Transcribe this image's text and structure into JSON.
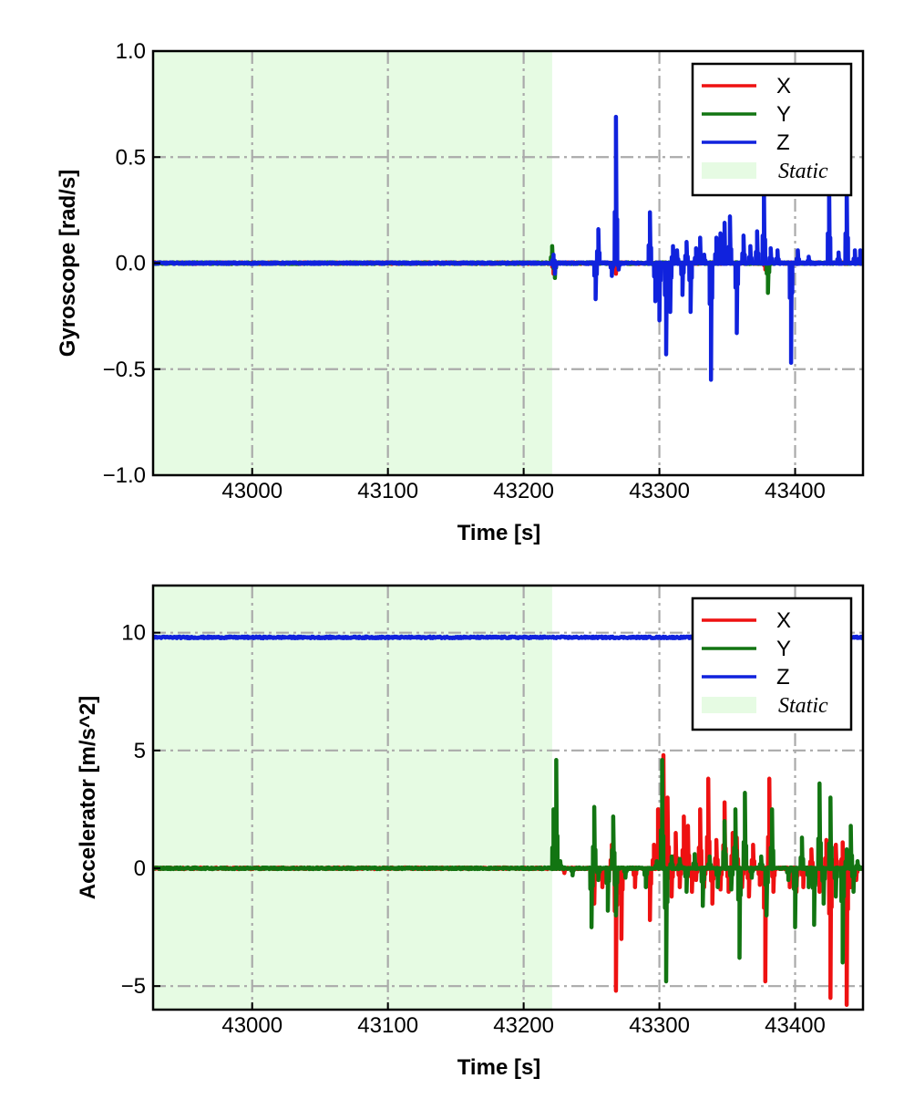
{
  "colors": {
    "x": "#ee1111",
    "y": "#127512",
    "z": "#1022dd",
    "static": "#e6fbe3",
    "grid": "#aaaaaa"
  },
  "chart_data": [
    {
      "type": "line",
      "xlabel": "Time [s]",
      "ylabel": "Gyroscope [rad/s]",
      "xlim": [
        42927,
        43450
      ],
      "ylim": [
        -1.0,
        1.0
      ],
      "xticks": [
        43000,
        43100,
        43200,
        43300,
        43400
      ],
      "xtick_labels": [
        "43000",
        "43100",
        "43200",
        "43300",
        "43400"
      ],
      "yticks": [
        -1.0,
        -0.5,
        0.0,
        0.5,
        1.0
      ],
      "ytick_labels": [
        "−1.0",
        "−0.5",
        "0.0",
        "0.5",
        "1.0"
      ],
      "grid": true,
      "legend": {
        "position": "top-right",
        "labels": [
          "X",
          "Y",
          "Z",
          "Static"
        ]
      },
      "static_region": [
        42927,
        43221
      ],
      "series": [
        {
          "name": "X",
          "color_key": "x",
          "baseline": 0.0,
          "spikes": [
            [
              43221,
              0.05
            ],
            [
              43222,
              -0.05
            ],
            [
              43268,
              -0.05
            ],
            [
              43298,
              -0.05
            ],
            [
              43378,
              -0.03
            ]
          ]
        },
        {
          "name": "Y",
          "color_key": "y",
          "baseline": 0.0,
          "spikes": [
            [
              43221,
              0.08
            ],
            [
              43223,
              -0.07
            ],
            [
              43380,
              -0.14
            ],
            [
              43432,
              0.03
            ]
          ]
        },
        {
          "name": "Z",
          "color_key": "z",
          "baseline": 0.0,
          "spikes": [
            [
              43222,
              0.04
            ],
            [
              43223,
              -0.05
            ],
            [
              43253,
              -0.17
            ],
            [
              43255,
              0.16
            ],
            [
              43265,
              -0.06
            ],
            [
              43268,
              0.69
            ],
            [
              43270,
              -0.03
            ],
            [
              43293,
              0.24
            ],
            [
              43297,
              -0.18
            ],
            [
              43300,
              -0.27
            ],
            [
              43305,
              -0.43
            ],
            [
              43308,
              -0.23
            ],
            [
              43310,
              0.08
            ],
            [
              43313,
              0.06
            ],
            [
              43317,
              -0.15
            ],
            [
              43320,
              0.1
            ],
            [
              43323,
              -0.23
            ],
            [
              43327,
              0.07
            ],
            [
              43330,
              0.12
            ],
            [
              43333,
              0.04
            ],
            [
              43338,
              -0.55
            ],
            [
              43342,
              0.12
            ],
            [
              43345,
              0.14
            ],
            [
              43348,
              0.19
            ],
            [
              43352,
              0.22
            ],
            [
              43357,
              -0.33
            ],
            [
              43362,
              0.13
            ],
            [
              43367,
              0.08
            ],
            [
              43372,
              0.15
            ],
            [
              43377,
              0.37
            ],
            [
              43382,
              0.07
            ],
            [
              43387,
              0.06
            ],
            [
              43397,
              -0.47
            ],
            [
              43402,
              0.06
            ],
            [
              43410,
              0.03
            ],
            [
              43425,
              0.4
            ],
            [
              43432,
              0.05
            ],
            [
              43438,
              0.4
            ],
            [
              43444,
              0.06
            ],
            [
              43448,
              0.06
            ]
          ]
        }
      ]
    },
    {
      "type": "line",
      "xlabel": "Time [s]",
      "ylabel": "Accelerator [m/s^2]",
      "xlim": [
        42927,
        43450
      ],
      "ylim": [
        -6.0,
        12.0
      ],
      "xticks": [
        43000,
        43100,
        43200,
        43300,
        43400
      ],
      "xtick_labels": [
        "43000",
        "43100",
        "43200",
        "43300",
        "43400"
      ],
      "yticks": [
        -5,
        0,
        5,
        10
      ],
      "ytick_labels": [
        "−5",
        "0",
        "5",
        "10"
      ],
      "grid": true,
      "legend": {
        "position": "top-right",
        "labels": [
          "X",
          "Y",
          "Z",
          "Static"
        ]
      },
      "static_region": [
        42927,
        43221
      ],
      "series": [
        {
          "name": "X",
          "color_key": "x",
          "baseline": 0.0,
          "spikes": [
            [
              43222,
              0.4
            ],
            [
              43230,
              -0.2
            ],
            [
              43252,
              -1.5
            ],
            [
              43258,
              -0.8
            ],
            [
              43265,
              1.0
            ],
            [
              43268,
              -5.2
            ],
            [
              43272,
              -3.0
            ],
            [
              43282,
              -0.8
            ],
            [
              43293,
              -2.2
            ],
            [
              43296,
              1.0
            ],
            [
              43299,
              2.5
            ],
            [
              43303,
              4.8
            ],
            [
              43306,
              3.0
            ],
            [
              43309,
              -1.2
            ],
            [
              43312,
              1.5
            ],
            [
              43315,
              -0.8
            ],
            [
              43318,
              2.2
            ],
            [
              43321,
              1.8
            ],
            [
              43324,
              -1.0
            ],
            [
              43327,
              -0.5
            ],
            [
              43330,
              2.5
            ],
            [
              43333,
              -0.8
            ],
            [
              43336,
              3.8
            ],
            [
              43339,
              -1.5
            ],
            [
              43342,
              1.2
            ],
            [
              43345,
              -0.9
            ],
            [
              43348,
              2.8
            ],
            [
              43351,
              -1.0
            ],
            [
              43354,
              1.5
            ],
            [
              43357,
              1.3
            ],
            [
              43361,
              -0.8
            ],
            [
              43366,
              -1.2
            ],
            [
              43369,
              1.0
            ],
            [
              43374,
              -0.7
            ],
            [
              43378,
              -4.8
            ],
            [
              43381,
              3.8
            ],
            [
              43384,
              -1.0
            ],
            [
              43396,
              -0.8
            ],
            [
              43401,
              -1.0
            ],
            [
              43406,
              -0.8
            ],
            [
              43412,
              0.8
            ],
            [
              43418,
              -1.0
            ],
            [
              43423,
              1.2
            ],
            [
              43426,
              -5.5
            ],
            [
              43430,
              1.0
            ],
            [
              43435,
              1.1
            ],
            [
              43438,
              -5.8
            ],
            [
              43441,
              -0.8
            ],
            [
              43445,
              -0.5
            ]
          ]
        },
        {
          "name": "Y",
          "color_key": "y",
          "baseline": 0.0,
          "spikes": [
            [
              43222,
              2.5
            ],
            [
              43224,
              4.6
            ],
            [
              43227,
              0.3
            ],
            [
              43236,
              -0.3
            ],
            [
              43250,
              -2.5
            ],
            [
              43252,
              2.6
            ],
            [
              43255,
              -0.5
            ],
            [
              43262,
              -1.8
            ],
            [
              43266,
              2.2
            ],
            [
              43268,
              -2.0
            ],
            [
              43275,
              -0.4
            ],
            [
              43290,
              -0.8
            ],
            [
              43298,
              0.3
            ],
            [
              43302,
              4.6
            ],
            [
              43305,
              -4.8
            ],
            [
              43309,
              0.5
            ],
            [
              43315,
              0.4
            ],
            [
              43320,
              -1.0
            ],
            [
              43326,
              0.6
            ],
            [
              43332,
              -1.6
            ],
            [
              43337,
              0.5
            ],
            [
              43343,
              -0.8
            ],
            [
              43348,
              2.0
            ],
            [
              43353,
              -0.9
            ],
            [
              43356,
              2.5
            ],
            [
              43359,
              -3.8
            ],
            [
              43363,
              3.2
            ],
            [
              43368,
              -0.4
            ],
            [
              43375,
              0.5
            ],
            [
              43379,
              -2.0
            ],
            [
              43383,
              2.5
            ],
            [
              43395,
              -0.5
            ],
            [
              43400,
              -2.5
            ],
            [
              43405,
              1.3
            ],
            [
              43410,
              -0.8
            ],
            [
              43414,
              -2.4
            ],
            [
              43418,
              3.6
            ],
            [
              43421,
              -1.5
            ],
            [
              43426,
              3.0
            ],
            [
              43430,
              -1.2
            ],
            [
              43435,
              -4.0
            ],
            [
              43438,
              0.8
            ],
            [
              43441,
              1.8
            ],
            [
              43443,
              -1.0
            ],
            [
              43446,
              0.3
            ]
          ]
        },
        {
          "name": "Z",
          "color_key": "z",
          "baseline": 9.8,
          "spikes": []
        }
      ]
    }
  ]
}
